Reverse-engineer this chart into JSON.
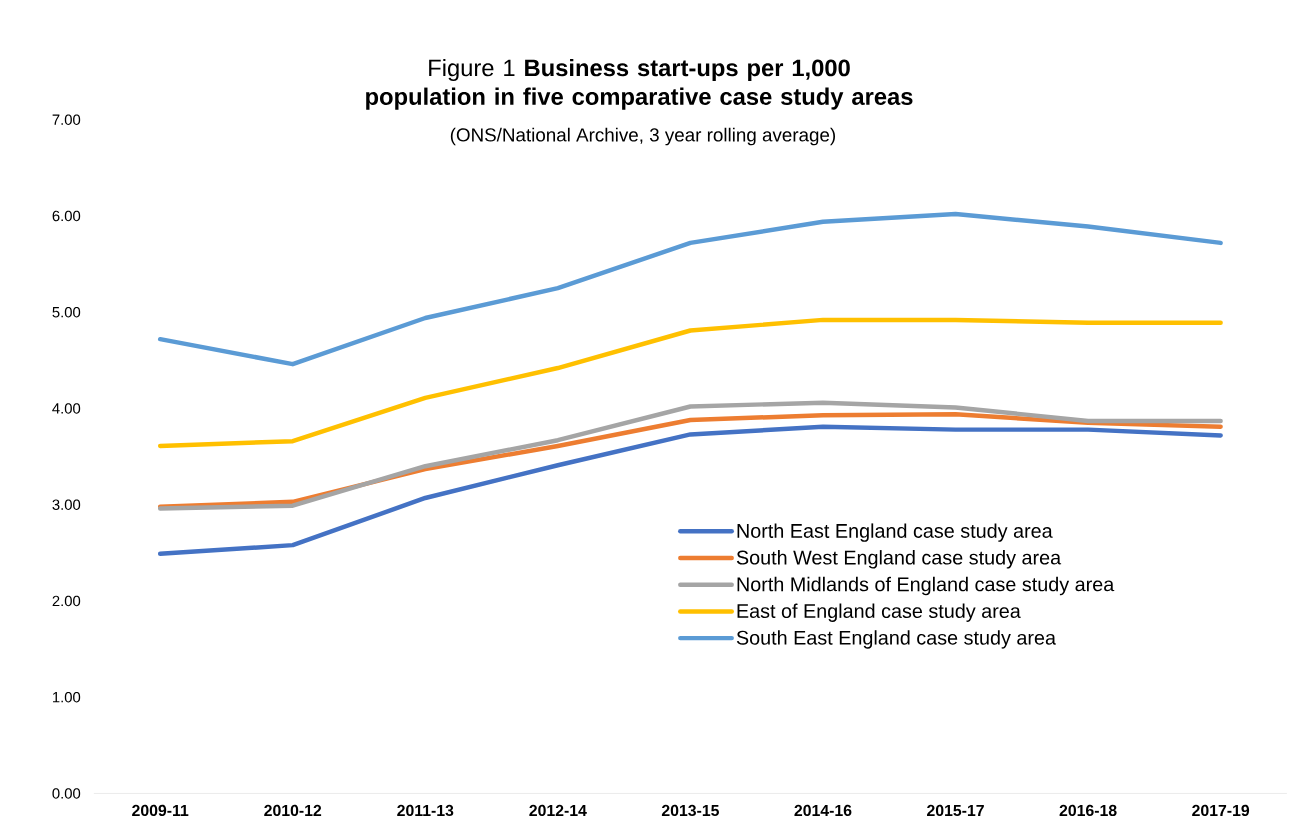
{
  "chart_data": {
    "type": "line",
    "title": "Figure 1  **Business start-ups per 1,000 population in five comparative case study areas**",
    "subtitle": "(ONS/National Archive, 3 year rolling average)",
    "categories": [
      "2009-11",
      "2010-12",
      "2011-13",
      "2012-14",
      "2013-15",
      "2014-16",
      "2015-17",
      "2016-18",
      "2017-19"
    ],
    "series": [
      {
        "name": "North East England case study area",
        "color": "#4472c4",
        "values": [
          2.49,
          2.58,
          3.07,
          3.41,
          3.73,
          3.81,
          3.78,
          3.78,
          3.72
        ]
      },
      {
        "name": "South West England case study area",
        "color": "#ed7d31",
        "values": [
          2.98,
          3.03,
          3.37,
          3.61,
          3.88,
          3.93,
          3.94,
          3.85,
          3.81
        ]
      },
      {
        "name": "North Midlands of England case study area",
        "color": "#a5a5a5",
        "values": [
          2.96,
          2.99,
          3.4,
          3.67,
          4.02,
          4.06,
          4.01,
          3.87,
          3.87
        ]
      },
      {
        "name": "East of England case study area",
        "color": "#ffc000",
        "values": [
          3.61,
          3.66,
          4.11,
          4.42,
          4.81,
          4.92,
          4.92,
          4.89,
          4.89
        ]
      },
      {
        "name": "South East England case study area",
        "color": "#5b9bd5",
        "values": [
          4.72,
          4.46,
          4.94,
          5.25,
          5.72,
          5.94,
          6.02,
          5.89,
          5.72
        ]
      }
    ],
    "ylim": [
      0,
      7
    ],
    "yticks": [
      {
        "value": 0,
        "label": "0.00"
      },
      {
        "value": 1,
        "label": "1.00"
      },
      {
        "value": 2,
        "label": "2.00"
      },
      {
        "value": 3,
        "label": "3.00"
      },
      {
        "value": 4,
        "label": "4.00"
      },
      {
        "value": 5,
        "label": "5.00"
      },
      {
        "value": 6,
        "label": "6.00"
      },
      {
        "value": 7,
        "label": "7.00"
      }
    ],
    "legend": "bottom right"
  }
}
